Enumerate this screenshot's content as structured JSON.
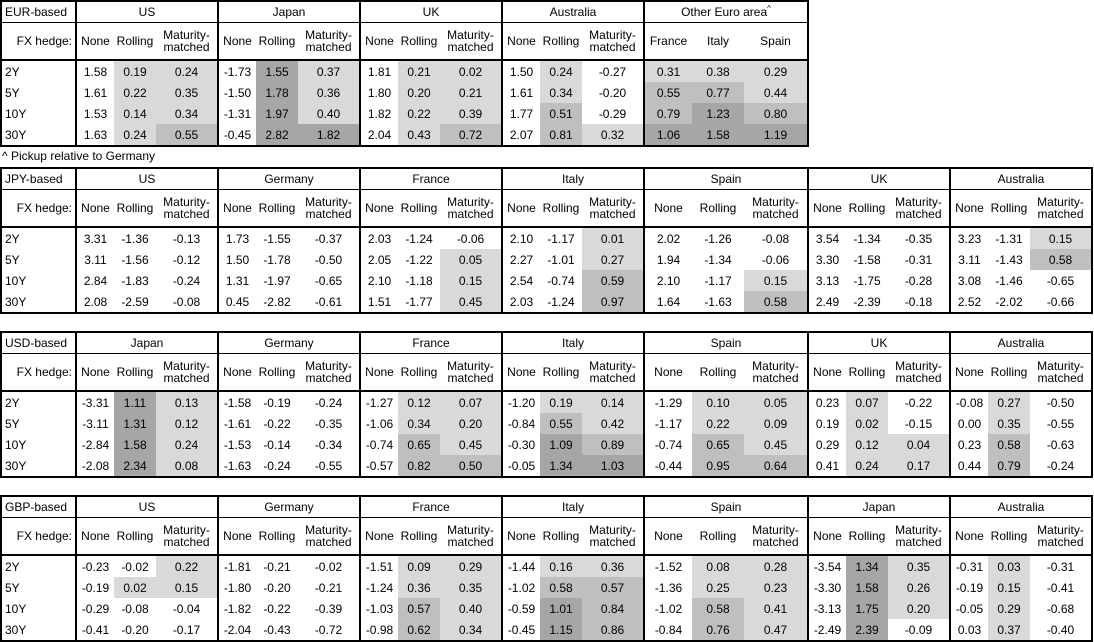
{
  "labels": {
    "fx_hedge": "FX hedge:",
    "tenors": [
      "2Y",
      "5Y",
      "10Y",
      "30Y"
    ],
    "hedge_cols": [
      "None",
      "Rolling",
      "Maturity-matched"
    ]
  },
  "footnote": {
    "text": "^ Pickup relative to Germany"
  },
  "shading": {
    "applies_to": "positive values in Rolling, Maturity-matched and pickup columns",
    "levels": [
      {
        "min": 0.0,
        "max": 0.5,
        "color": "#d9d9d9"
      },
      {
        "min": 0.5,
        "max": 1.0,
        "color": "#bfbfbf"
      },
      {
        "min": 1.0,
        "max": 99.0,
        "color": "#a6a6a6"
      }
    ]
  },
  "tables": [
    {
      "base_label": "EUR-based",
      "groups": [
        {
          "name": "US",
          "cols": [
            "None",
            "Rolling",
            "Maturity-matched"
          ],
          "rows": [
            [
              "1.58",
              "0.19",
              "0.24"
            ],
            [
              "1.61",
              "0.22",
              "0.35"
            ],
            [
              "1.53",
              "0.14",
              "0.34"
            ],
            [
              "1.63",
              "0.24",
              "0.55"
            ]
          ]
        },
        {
          "name": "Japan",
          "cols": [
            "None",
            "Rolling",
            "Maturity-matched"
          ],
          "rows": [
            [
              "-1.73",
              "1.55",
              "0.37"
            ],
            [
              "-1.50",
              "1.78",
              "0.36"
            ],
            [
              "-1.31",
              "1.97",
              "0.40"
            ],
            [
              "-0.45",
              "2.82",
              "1.82"
            ]
          ]
        },
        {
          "name": "UK",
          "cols": [
            "None",
            "Rolling",
            "Maturity-matched"
          ],
          "rows": [
            [
              "1.81",
              "0.21",
              "0.02"
            ],
            [
              "1.80",
              "0.20",
              "0.21"
            ],
            [
              "1.82",
              "0.22",
              "0.39"
            ],
            [
              "2.04",
              "0.43",
              "0.72"
            ]
          ]
        },
        {
          "name": "Australia",
          "cols": [
            "None",
            "Rolling",
            "Maturity-matched"
          ],
          "rows": [
            [
              "1.50",
              "0.24",
              "-0.27"
            ],
            [
              "1.61",
              "0.34",
              "-0.20"
            ],
            [
              "1.77",
              "0.51",
              "-0.29"
            ],
            [
              "2.07",
              "0.81",
              "0.32"
            ]
          ]
        },
        {
          "name": "Other Euro area",
          "sup": "^",
          "pickup": true,
          "cols": [
            "France",
            "Italy",
            "Spain"
          ],
          "rows": [
            [
              "0.31",
              "0.38",
              "0.29"
            ],
            [
              "0.55",
              "0.77",
              "0.44"
            ],
            [
              "0.79",
              "1.23",
              "0.80"
            ],
            [
              "1.06",
              "1.58",
              "1.19"
            ]
          ]
        }
      ]
    },
    {
      "base_label": "JPY-based",
      "groups": [
        {
          "name": "US",
          "cols": [
            "None",
            "Rolling",
            "Maturity-matched"
          ],
          "rows": [
            [
              "3.31",
              "-1.36",
              "-0.13"
            ],
            [
              "3.11",
              "-1.56",
              "-0.12"
            ],
            [
              "2.84",
              "-1.83",
              "-0.24"
            ],
            [
              "2.08",
              "-2.59",
              "-0.08"
            ]
          ]
        },
        {
          "name": "Germany",
          "cols": [
            "None",
            "Rolling",
            "Maturity-matched"
          ],
          "rows": [
            [
              "1.73",
              "-1.55",
              "-0.37"
            ],
            [
              "1.50",
              "-1.78",
              "-0.50"
            ],
            [
              "1.31",
              "-1.97",
              "-0.65"
            ],
            [
              "0.45",
              "-2.82",
              "-0.61"
            ]
          ]
        },
        {
          "name": "France",
          "cols": [
            "None",
            "Rolling",
            "Maturity-matched"
          ],
          "rows": [
            [
              "2.03",
              "-1.24",
              "-0.06"
            ],
            [
              "2.05",
              "-1.22",
              "0.05"
            ],
            [
              "2.10",
              "-1.18",
              "0.15"
            ],
            [
              "1.51",
              "-1.77",
              "0.45"
            ]
          ]
        },
        {
          "name": "Italy",
          "cols": [
            "None",
            "Rolling",
            "Maturity-matched"
          ],
          "rows": [
            [
              "2.10",
              "-1.17",
              "0.01"
            ],
            [
              "2.27",
              "-1.01",
              "0.27"
            ],
            [
              "2.54",
              "-0.74",
              "0.59"
            ],
            [
              "2.03",
              "-1.24",
              "0.97"
            ]
          ]
        },
        {
          "name": "Spain",
          "cols": [
            "None",
            "Rolling",
            "Maturity-matched"
          ],
          "rows": [
            [
              "2.02",
              "-1.26",
              "-0.08"
            ],
            [
              "1.94",
              "-1.34",
              "-0.06"
            ],
            [
              "2.10",
              "-1.17",
              "0.15"
            ],
            [
              "1.64",
              "-1.63",
              "0.58"
            ]
          ]
        },
        {
          "name": "UK",
          "cols": [
            "None",
            "Rolling",
            "Maturity-matched"
          ],
          "rows": [
            [
              "3.54",
              "-1.34",
              "-0.35"
            ],
            [
              "3.30",
              "-1.58",
              "-0.31"
            ],
            [
              "3.13",
              "-1.75",
              "-0.28"
            ],
            [
              "2.49",
              "-2.39",
              "-0.18"
            ]
          ]
        },
        {
          "name": "Australia",
          "cols": [
            "None",
            "Rolling",
            "Maturity-matched"
          ],
          "rows": [
            [
              "3.23",
              "-1.31",
              "0.15"
            ],
            [
              "3.11",
              "-1.43",
              "0.58"
            ],
            [
              "3.08",
              "-1.46",
              "-0.65"
            ],
            [
              "2.52",
              "-2.02",
              "-0.66"
            ]
          ]
        }
      ]
    },
    {
      "base_label": "USD-based",
      "groups": [
        {
          "name": "Japan",
          "cols": [
            "None",
            "Rolling",
            "Maturity-matched"
          ],
          "rows": [
            [
              "-3.31",
              "1.11",
              "0.13"
            ],
            [
              "-3.11",
              "1.31",
              "0.12"
            ],
            [
              "-2.84",
              "1.58",
              "0.24"
            ],
            [
              "-2.08",
              "2.34",
              "0.08"
            ]
          ]
        },
        {
          "name": "Germany",
          "cols": [
            "None",
            "Rolling",
            "Maturity-matched"
          ],
          "rows": [
            [
              "-1.58",
              "-0.19",
              "-0.24"
            ],
            [
              "-1.61",
              "-0.22",
              "-0.35"
            ],
            [
              "-1.53",
              "-0.14",
              "-0.34"
            ],
            [
              "-1.63",
              "-0.24",
              "-0.55"
            ]
          ]
        },
        {
          "name": "France",
          "cols": [
            "None",
            "Rolling",
            "Maturity-matched"
          ],
          "rows": [
            [
              "-1.27",
              "0.12",
              "0.07"
            ],
            [
              "-1.06",
              "0.34",
              "0.20"
            ],
            [
              "-0.74",
              "0.65",
              "0.45"
            ],
            [
              "-0.57",
              "0.82",
              "0.50"
            ]
          ]
        },
        {
          "name": "Italy",
          "cols": [
            "None",
            "Rolling",
            "Maturity-matched"
          ],
          "rows": [
            [
              "-1.20",
              "0.19",
              "0.14"
            ],
            [
              "-0.84",
              "0.55",
              "0.42"
            ],
            [
              "-0.30",
              "1.09",
              "0.89"
            ],
            [
              "-0.05",
              "1.34",
              "1.03"
            ]
          ]
        },
        {
          "name": "Spain",
          "cols": [
            "None",
            "Rolling",
            "Maturity-matched"
          ],
          "rows": [
            [
              "-1.29",
              "0.10",
              "0.05"
            ],
            [
              "-1.17",
              "0.22",
              "0.09"
            ],
            [
              "-0.74",
              "0.65",
              "0.45"
            ],
            [
              "-0.44",
              "0.95",
              "0.64"
            ]
          ]
        },
        {
          "name": "UK",
          "cols": [
            "None",
            "Rolling",
            "Maturity-matched"
          ],
          "rows": [
            [
              "0.23",
              "0.07",
              "-0.22"
            ],
            [
              "0.19",
              "0.02",
              "-0.15"
            ],
            [
              "0.29",
              "0.12",
              "0.04"
            ],
            [
              "0.41",
              "0.24",
              "0.17"
            ]
          ]
        },
        {
          "name": "Australia",
          "cols": [
            "None",
            "Rolling",
            "Maturity-matched"
          ],
          "rows": [
            [
              "-0.08",
              "0.27",
              "-0.50"
            ],
            [
              "0.00",
              "0.35",
              "-0.55"
            ],
            [
              "0.23",
              "0.58",
              "-0.63"
            ],
            [
              "0.44",
              "0.79",
              "-0.24"
            ]
          ]
        }
      ]
    },
    {
      "base_label": "GBP-based",
      "groups": [
        {
          "name": "US",
          "cols": [
            "None",
            "Rolling",
            "Maturity-matched"
          ],
          "rows": [
            [
              "-0.23",
              "-0.02",
              "0.22"
            ],
            [
              "-0.19",
              "0.02",
              "0.15"
            ],
            [
              "-0.29",
              "-0.08",
              "-0.04"
            ],
            [
              "-0.41",
              "-0.20",
              "-0.17"
            ]
          ]
        },
        {
          "name": "Germany",
          "cols": [
            "None",
            "Rolling",
            "Maturity-matched"
          ],
          "rows": [
            [
              "-1.81",
              "-0.21",
              "-0.02"
            ],
            [
              "-1.80",
              "-0.20",
              "-0.21"
            ],
            [
              "-1.82",
              "-0.22",
              "-0.39"
            ],
            [
              "-2.04",
              "-0.43",
              "-0.72"
            ]
          ]
        },
        {
          "name": "France",
          "cols": [
            "None",
            "Rolling",
            "Maturity-matched"
          ],
          "rows": [
            [
              "-1.51",
              "0.09",
              "0.29"
            ],
            [
              "-1.24",
              "0.36",
              "0.35"
            ],
            [
              "-1.03",
              "0.57",
              "0.40"
            ],
            [
              "-0.98",
              "0.62",
              "0.34"
            ]
          ]
        },
        {
          "name": "Italy",
          "cols": [
            "None",
            "Rolling",
            "Maturity-matched"
          ],
          "rows": [
            [
              "-1.44",
              "0.16",
              "0.36"
            ],
            [
              "-1.02",
              "0.58",
              "0.57"
            ],
            [
              "-0.59",
              "1.01",
              "0.84"
            ],
            [
              "-0.45",
              "1.15",
              "0.86"
            ]
          ]
        },
        {
          "name": "Spain",
          "cols": [
            "None",
            "Rolling",
            "Maturity-matched"
          ],
          "rows": [
            [
              "-1.52",
              "0.08",
              "0.28"
            ],
            [
              "-1.36",
              "0.25",
              "0.23"
            ],
            [
              "-1.02",
              "0.58",
              "0.41"
            ],
            [
              "-0.84",
              "0.76",
              "0.47"
            ]
          ]
        },
        {
          "name": "Japan",
          "cols": [
            "None",
            "Rolling",
            "Maturity-matched"
          ],
          "rows": [
            [
              "-3.54",
              "1.34",
              "0.35"
            ],
            [
              "-3.30",
              "1.58",
              "0.26"
            ],
            [
              "-3.13",
              "1.75",
              "0.20"
            ],
            [
              "-2.49",
              "2.39",
              "-0.09"
            ]
          ]
        },
        {
          "name": "Australia",
          "cols": [
            "None",
            "Rolling",
            "Maturity-matched"
          ],
          "rows": [
            [
              "-0.31",
              "0.03",
              "-0.31"
            ],
            [
              "-0.19",
              "0.15",
              "-0.41"
            ],
            [
              "-0.05",
              "0.29",
              "-0.68"
            ],
            [
              "0.03",
              "0.37",
              "-0.40"
            ]
          ]
        }
      ]
    }
  ]
}
